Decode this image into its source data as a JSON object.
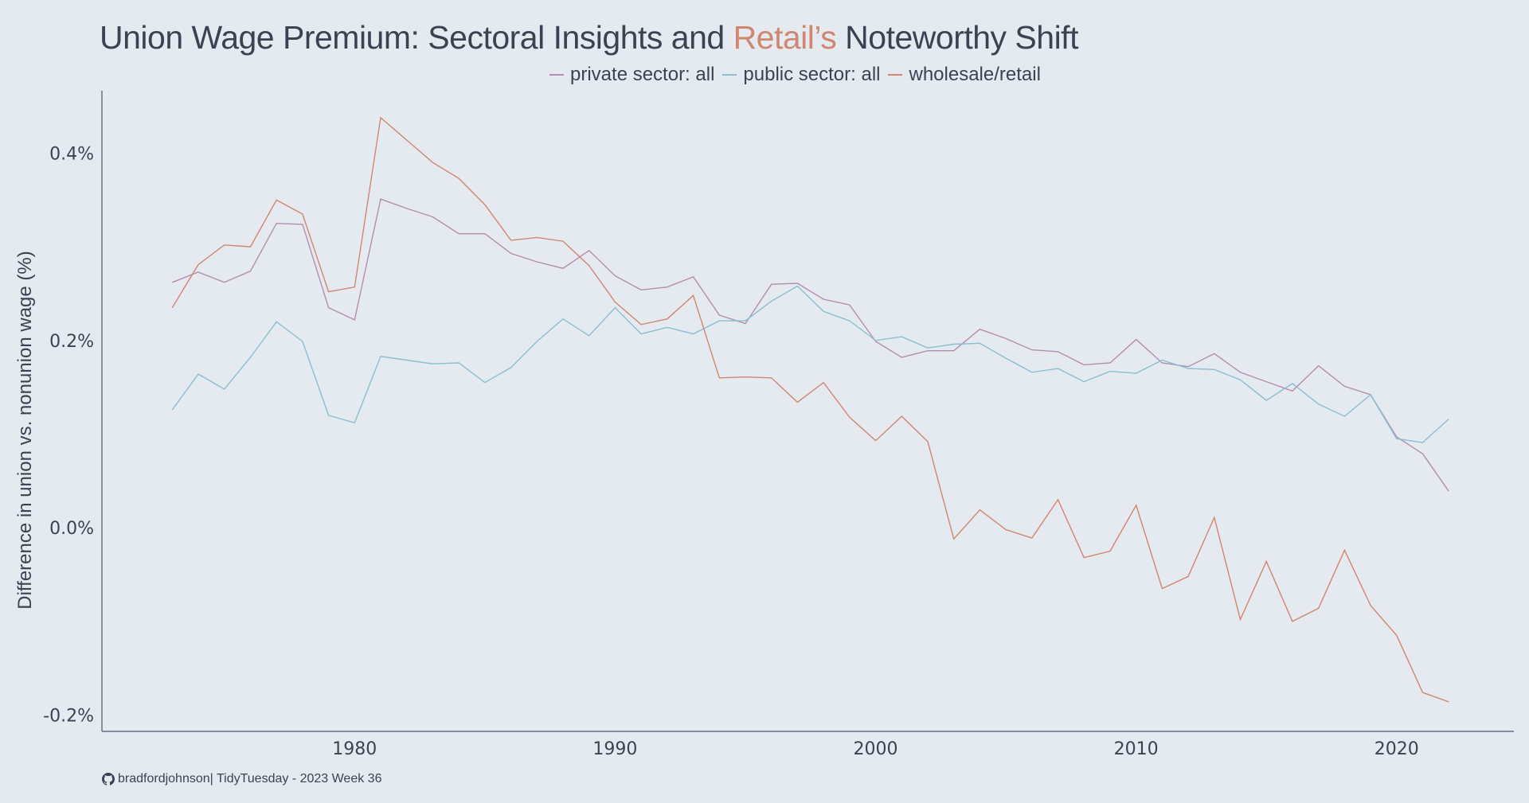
{
  "chart_data": {
    "type": "line",
    "title": {
      "prefix": "Union Wage Premium: Sectoral Insights and ",
      "highlight": "Retail’s",
      "suffix": " Noteworthy Shift"
    },
    "xlabel": "",
    "ylabel": "Difference in union vs. nonunion wage (%)",
    "xlim": [
      1970.3,
      2024.5
    ],
    "ylim": [
      -0.2175,
      0.4667
    ],
    "x_ticks": [
      1980,
      1990,
      2000,
      2010,
      2020
    ],
    "x_tick_labels": [
      "1980",
      "1990",
      "2000",
      "2010",
      "2020"
    ],
    "y_ticks": [
      0.4,
      0.2,
      0.0,
      -0.2
    ],
    "y_tick_labels": [
      "0.4%",
      "0.2%",
      "0.0%",
      "-0.2%"
    ],
    "grid": false,
    "legend_position": "top-center",
    "x": [
      1973,
      1974,
      1975,
      1976,
      1977,
      1978,
      1979,
      1980,
      1981,
      1982,
      1983,
      1984,
      1985,
      1986,
      1987,
      1988,
      1989,
      1990,
      1991,
      1992,
      1993,
      1994,
      1995,
      1996,
      1997,
      1998,
      1999,
      2000,
      2001,
      2002,
      2003,
      2004,
      2005,
      2006,
      2007,
      2008,
      2009,
      2010,
      2011,
      2012,
      2013,
      2014,
      2015,
      2016,
      2017,
      2018,
      2019,
      2020,
      2021,
      2022
    ],
    "series": [
      {
        "name": "private sector: all",
        "color": "#b48ead",
        "values": [
          0.262,
          0.273,
          0.262,
          0.274,
          0.325,
          0.324,
          0.235,
          0.222,
          0.351,
          0.341,
          0.332,
          0.314,
          0.314,
          0.293,
          0.284,
          0.277,
          0.296,
          0.269,
          0.254,
          0.257,
          0.268,
          0.227,
          0.218,
          0.26,
          0.261,
          0.244,
          0.238,
          0.199,
          0.182,
          0.189,
          0.189,
          0.212,
          0.202,
          0.19,
          0.188,
          0.174,
          0.176,
          0.201,
          0.176,
          0.172,
          0.186,
          0.166,
          0.156,
          0.146,
          0.173,
          0.151,
          0.142,
          0.097,
          0.079,
          0.039
        ]
      },
      {
        "name": "public sector: all",
        "color": "#88c0d0",
        "values": [
          0.126,
          0.164,
          0.148,
          0.182,
          0.22,
          0.199,
          0.12,
          0.112,
          0.183,
          0.179,
          0.175,
          0.176,
          0.155,
          0.171,
          0.199,
          0.223,
          0.205,
          0.235,
          0.207,
          0.214,
          0.207,
          0.221,
          0.221,
          0.242,
          0.258,
          0.231,
          0.221,
          0.2,
          0.204,
          0.192,
          0.196,
          0.197,
          0.181,
          0.166,
          0.17,
          0.156,
          0.167,
          0.165,
          0.179,
          0.17,
          0.169,
          0.158,
          0.136,
          0.154,
          0.132,
          0.119,
          0.142,
          0.095,
          0.091,
          0.116
        ]
      },
      {
        "name": "wholesale/retail",
        "color": "#d08770",
        "values": [
          0.235,
          0.281,
          0.302,
          0.3,
          0.35,
          0.335,
          0.252,
          0.257,
          0.438,
          0.414,
          0.39,
          0.373,
          0.345,
          0.307,
          0.31,
          0.306,
          0.28,
          0.241,
          0.217,
          0.223,
          0.248,
          0.16,
          0.161,
          0.16,
          0.134,
          0.155,
          0.118,
          0.093,
          0.119,
          0.092,
          -0.012,
          0.019,
          -0.002,
          -0.011,
          0.03,
          -0.032,
          -0.025,
          0.024,
          -0.065,
          -0.052,
          0.011,
          -0.098,
          -0.036,
          -0.1,
          -0.086,
          -0.024,
          -0.083,
          -0.115,
          -0.176,
          -0.186
        ]
      }
    ]
  },
  "footer": {
    "icon": "github-icon",
    "text": "bradfordjohnson| TidyTuesday - 2023 Week 36"
  }
}
